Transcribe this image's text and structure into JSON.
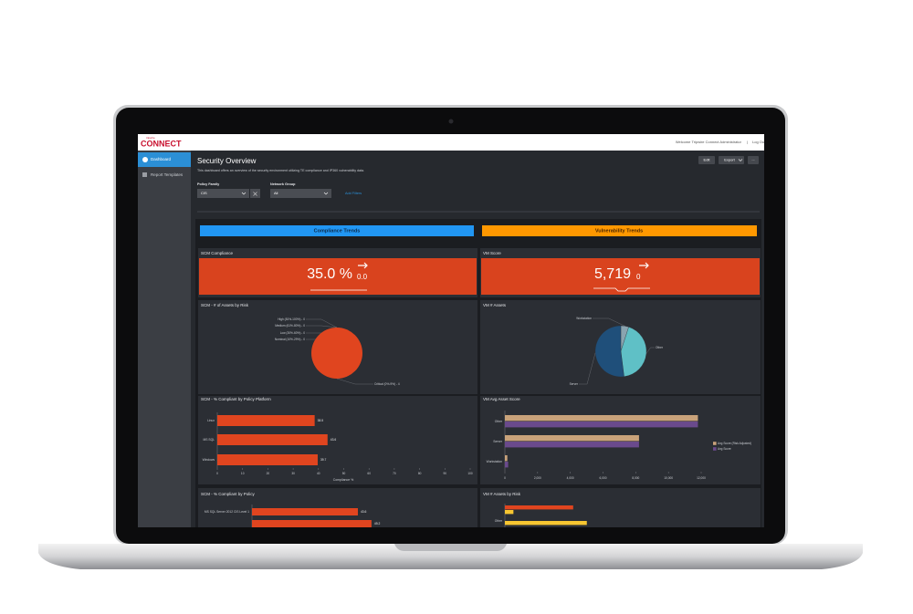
{
  "header": {
    "brand": "tripwire",
    "logo": "CONNECT",
    "welcome": "Welcome Tripwire Connect Administrator",
    "separator": "|",
    "logout": "Log Out"
  },
  "sidebar": {
    "items": [
      "Dashboard",
      "Report Templates"
    ]
  },
  "page": {
    "title": "Security Overview",
    "description": "This dashboard offers an overview of the security environment utilizing TE compliance and IP360 vulnerability data.",
    "buttons": [
      "Edit",
      "Export",
      "..."
    ]
  },
  "filters": {
    "items": [
      {
        "label": "Policy Family",
        "value": "CIS"
      },
      {
        "label": "Network Group",
        "value": "All"
      }
    ],
    "add": "Add Filters"
  },
  "sections": [
    "Compliance Trends",
    "Vulnerability Trends"
  ],
  "kpis": [
    {
      "title": "SCM Compliance",
      "value": "35.0 %",
      "change": "0.0"
    },
    {
      "title": "VM Score",
      "value": "5,719",
      "change": "0"
    }
  ],
  "chart_data": [
    {
      "type": "pie",
      "title": "SCM - # of Assets by Risk",
      "categories": [
        "High (81%-100%) - 0",
        "Medium (61%-80%) - 0",
        "Low (30%-60%) - 0",
        "Nominal (10%-29%) - 0",
        "Critical (0%-9%) - 4"
      ],
      "values": [
        0,
        0,
        0,
        0,
        4
      ],
      "colors": [
        "#f5a623",
        "#f7d046",
        "#7cb342",
        "#4fc3f7",
        "#e0451f"
      ]
    },
    {
      "type": "pie",
      "title": "VM # Assets",
      "categories": [
        "Workstation",
        "Other",
        "Server"
      ],
      "values": [
        5,
        43,
        52
      ],
      "colors": [
        "#8aa4b0",
        "#5fc0c6",
        "#1f4f7a"
      ]
    },
    {
      "type": "hbar",
      "title": "SCM - % Compliant by Policy Platform",
      "categories": [
        "Linux",
        "MS SQL",
        "Windows"
      ],
      "values": [
        38.5,
        43.6,
        39.7
      ],
      "color": "#e0451f",
      "show_values": true,
      "xlim": [
        0,
        100
      ],
      "xticks": [
        0,
        10,
        20,
        30,
        40,
        50,
        60,
        70,
        80,
        90,
        100
      ],
      "x_label": "Compliance %"
    },
    {
      "type": "hbar",
      "title": "VM Avg Asset Score",
      "categories": [
        "Other",
        "Server",
        "Workstation"
      ],
      "series": [
        {
          "name": "Avg Score (Risk Adjusted)",
          "color": "#c9a27a",
          "values": [
            11800,
            8200,
            150
          ]
        },
        {
          "name": "Avg Score",
          "color": "#6a4a8c",
          "values": [
            11800,
            8200,
            200
          ]
        }
      ],
      "xlim": [
        0,
        12000
      ],
      "xticks": [
        0,
        {
          "value": 2000,
          "label": "2,000"
        },
        {
          "value": 4000,
          "label": "4,000"
        },
        {
          "value": 6000,
          "label": "6,000"
        },
        {
          "value": 8000,
          "label": "8,000"
        },
        {
          "value": 10000,
          "label": "10,000"
        },
        {
          "value": 12000,
          "label": "12,000"
        }
      ]
    },
    {
      "type": "hbar",
      "title": "SCM - % Compliant by Policy",
      "categories": [
        "MS SQL Server 2012 CIS Level 1",
        null
      ],
      "values": [
        43.6,
        49.2
      ],
      "color": "#e0451f",
      "show_values": true,
      "xlim": [
        0,
        100
      ]
    },
    {
      "type": "hbar",
      "title": "VM # Assets by Risk",
      "categories": [
        null,
        "Other"
      ],
      "series": [
        {
          "color": "#e0451f",
          "values": [
            40,
            null
          ]
        },
        {
          "color": "#f7c631",
          "values": [
            5,
            48
          ]
        }
      ],
      "xlim": [
        0,
        100
      ]
    }
  ]
}
